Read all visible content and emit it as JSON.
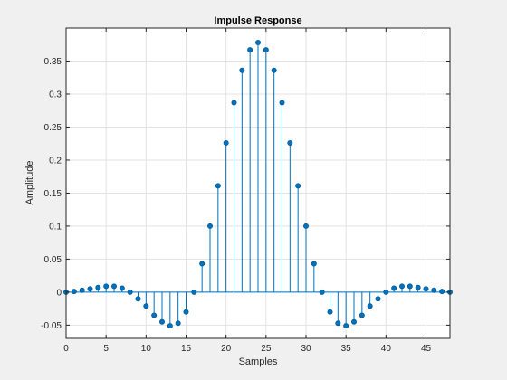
{
  "chart_data": {
    "type": "stem",
    "title": "Impulse Response",
    "xlabel": "Samples",
    "ylabel": "Amplitude",
    "xlim": [
      0,
      48
    ],
    "ylim": [
      -0.07,
      0.4
    ],
    "xticks": [
      "0",
      "5",
      "10",
      "15",
      "20",
      "25",
      "30",
      "35",
      "40",
      "45"
    ],
    "yticks": [
      "-0.05",
      "0",
      "0.05",
      "0.1",
      "0.15",
      "0.2",
      "0.25",
      "0.3",
      "0.35"
    ],
    "grid": true,
    "color": "#0072bd",
    "x": [
      0,
      1,
      2,
      3,
      4,
      5,
      6,
      7,
      8,
      9,
      10,
      11,
      12,
      13,
      14,
      15,
      16,
      17,
      18,
      19,
      20,
      21,
      22,
      23,
      24,
      25,
      26,
      27,
      28,
      29,
      30,
      31,
      32,
      33,
      34,
      35,
      36,
      37,
      38,
      39,
      40,
      41,
      42,
      43,
      44,
      45,
      46,
      47,
      48
    ],
    "values": [
      0.0,
      0.001,
      0.003,
      0.005,
      0.007,
      0.009,
      0.009,
      0.006,
      0.0,
      -0.01,
      -0.021,
      -0.035,
      -0.045,
      -0.051,
      -0.047,
      -0.03,
      0.0,
      0.043,
      0.1,
      0.161,
      0.226,
      0.287,
      0.336,
      0.367,
      0.378,
      0.367,
      0.336,
      0.287,
      0.226,
      0.161,
      0.1,
      0.043,
      0.0,
      -0.03,
      -0.047,
      -0.051,
      -0.045,
      -0.035,
      -0.021,
      -0.01,
      0.0,
      0.006,
      0.009,
      0.009,
      0.007,
      0.005,
      0.003,
      0.001,
      0.0
    ]
  }
}
